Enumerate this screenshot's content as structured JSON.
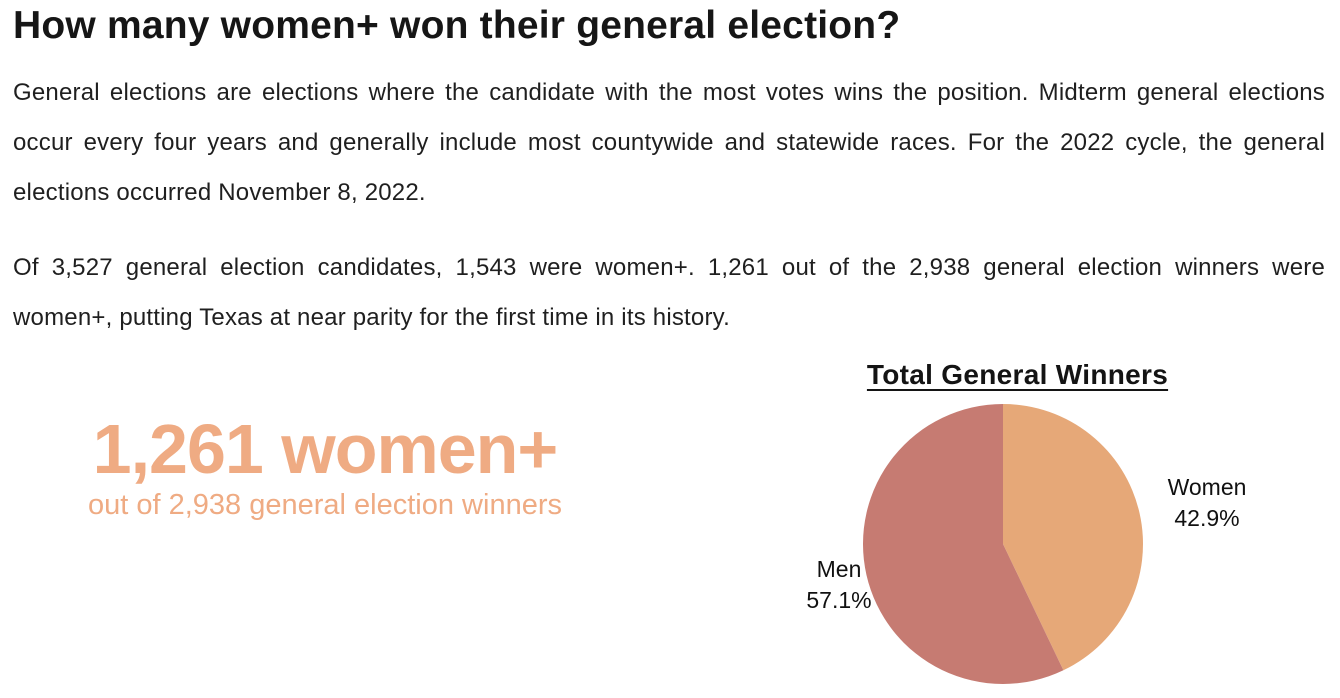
{
  "page": {
    "title": "How many women+ won their general election?",
    "paragraphs": [
      "General elections are elections where the candidate with the most votes wins the position. Midterm general elections occur every four years and generally include most countywide and statewide races. For the 2022 cycle, the general elections occurred November 8, 2022.",
      "Of 3,527 general election candidates, 1,543 were women+. 1,261 out of the 2,938 general election  winners were women+, putting Texas at near parity for the first time in its history."
    ]
  },
  "stat": {
    "value": "1,261 women+",
    "caption": "out of 2,938 general election winners",
    "color": "#EFAB83"
  },
  "chart_data": {
    "type": "pie",
    "title": "Total General Winners",
    "start_angle": "top",
    "direction": "clockwise",
    "slices": [
      {
        "label": "Women",
        "value": 42.9,
        "display": "42.9%",
        "color": "#E6A878"
      },
      {
        "label": "Men",
        "value": 57.1,
        "display": "57.1%",
        "color": "#C67B72"
      }
    ]
  }
}
